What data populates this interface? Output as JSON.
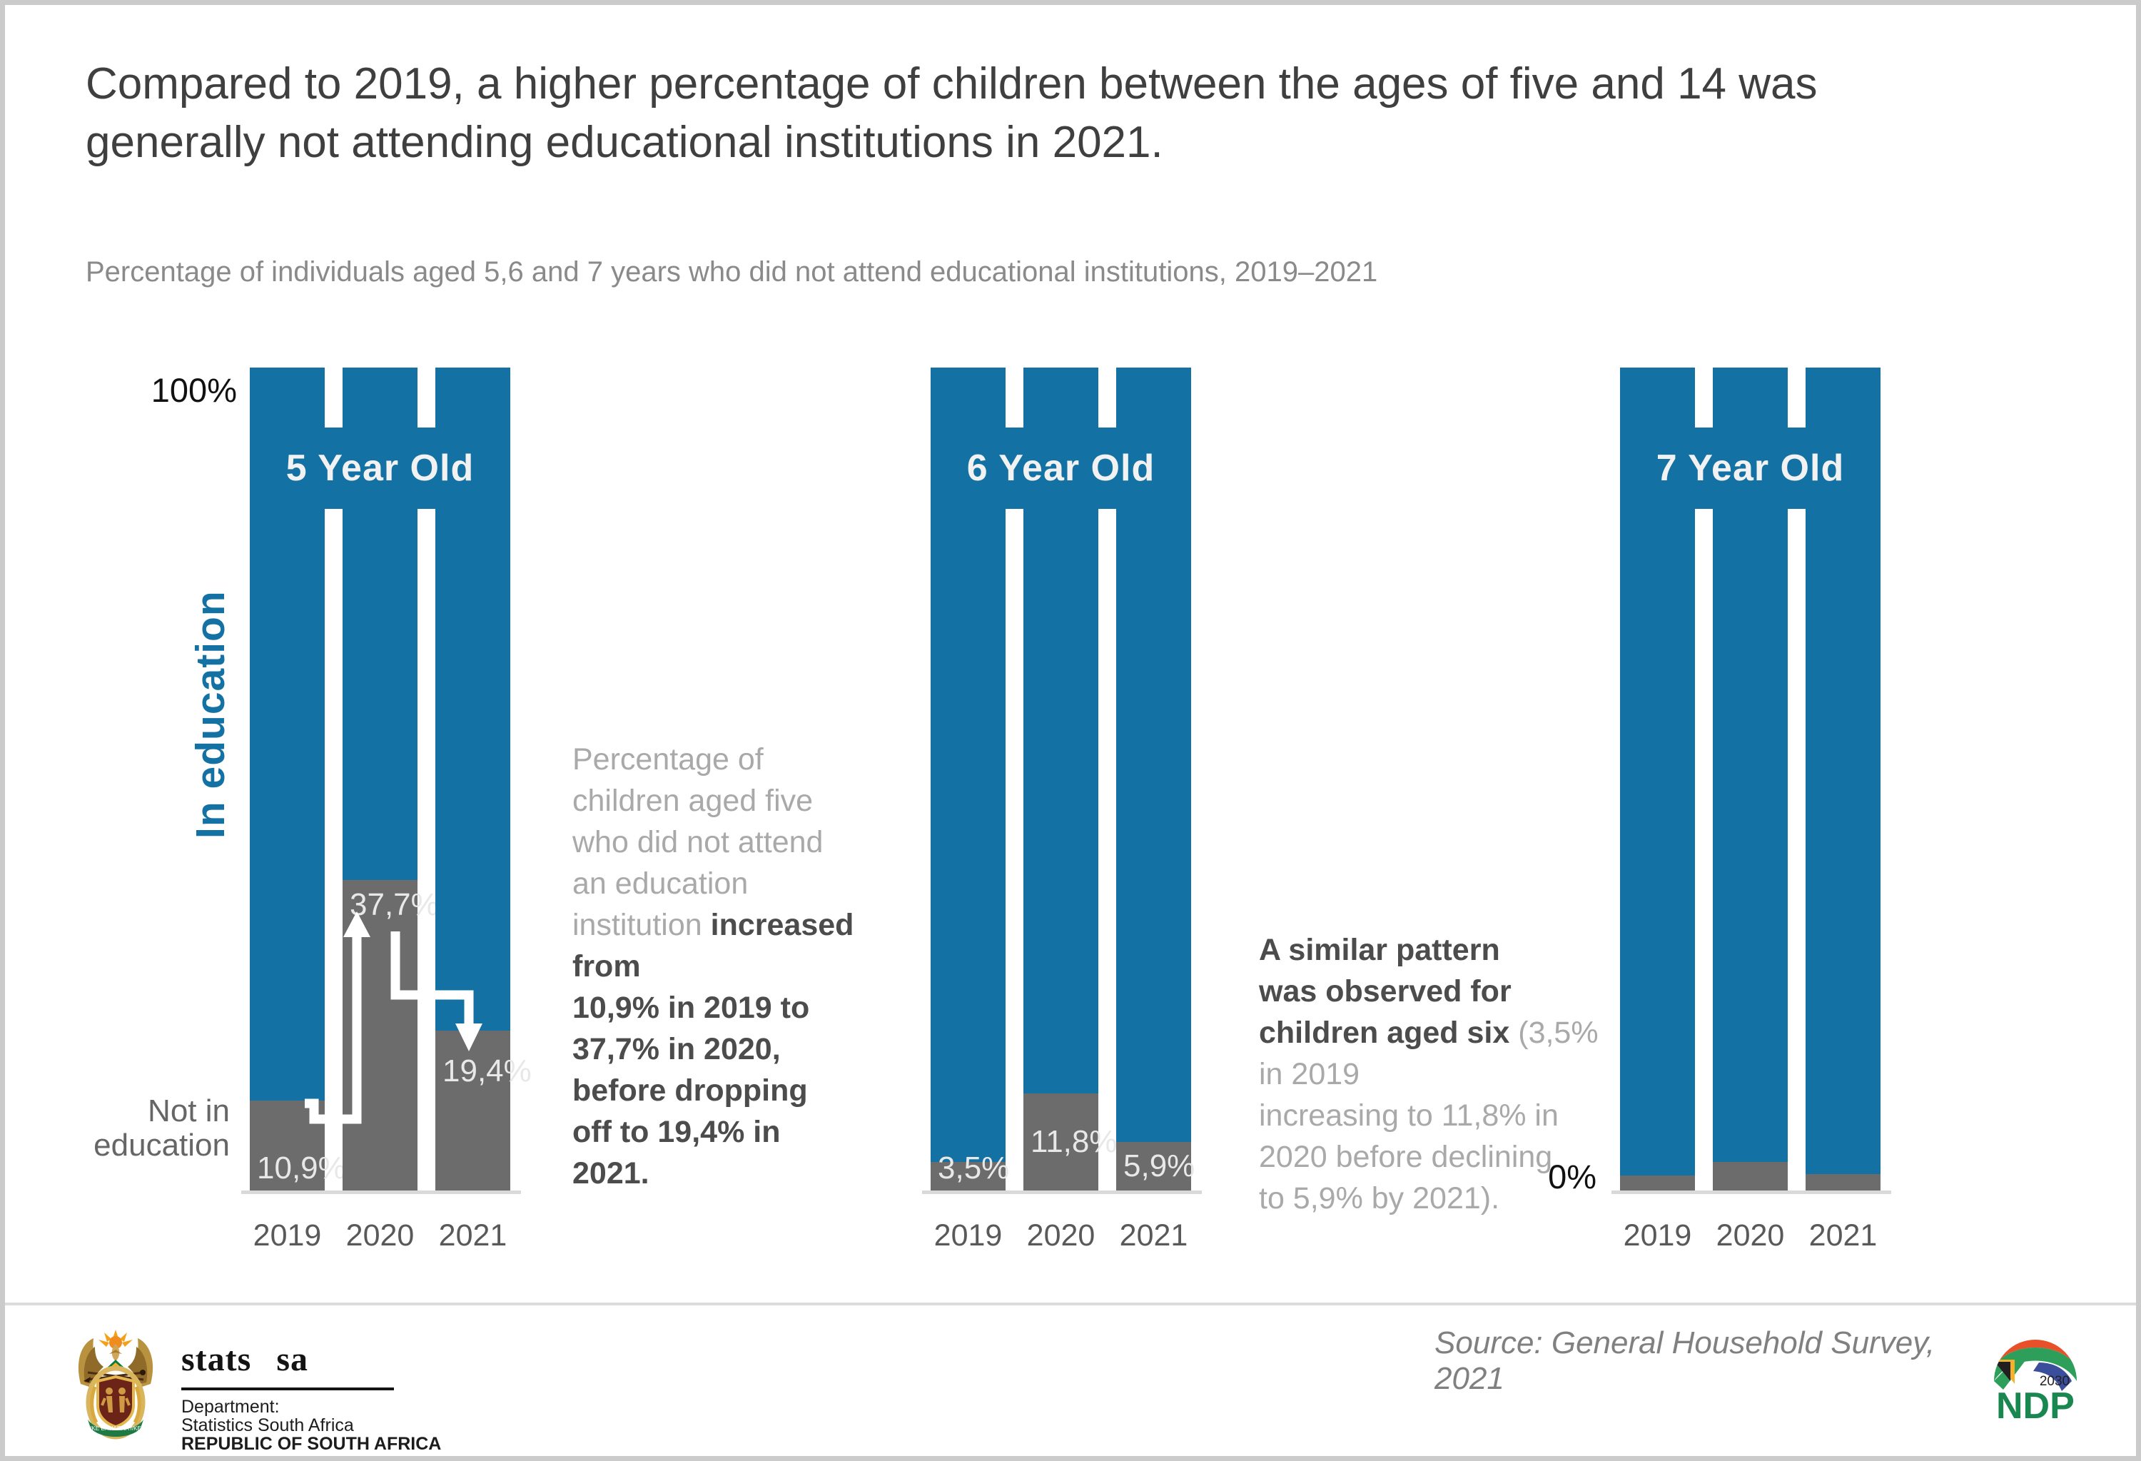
{
  "page": {
    "title": "Compared to 2019, a higher percentage of children between the ages of five and 14 was\ngenerally not attending educational institutions in 2021.",
    "subtitle": "Percentage of individuals aged 5,6 and 7 years who did not attend educational institutions, 2019–2021",
    "source": "Source: General Household Survey, 2021"
  },
  "axis": {
    "top_label": "100%",
    "zero_label": "0%",
    "in_education": "In education",
    "not_in_education": "Not in\neducation"
  },
  "chart_data": {
    "type": "bar",
    "stacked": true,
    "unit": "percent",
    "categories": [
      "2019",
      "2020",
      "2021"
    ],
    "ylim": [
      0,
      100
    ],
    "legend": [
      "In education (blue)",
      "Not in education (grey)"
    ],
    "colors": {
      "in_education": "#1371a3",
      "not_in_education": "#6c6c6c"
    },
    "groups": [
      {
        "title": "5 Year Old",
        "series_name": "Not in education",
        "values": [
          10.9,
          37.7,
          19.4
        ],
        "labels": [
          "10,9%",
          "37,7%",
          "19,4%"
        ],
        "label_positions": [
          "bottom",
          "top",
          "top-offset"
        ]
      },
      {
        "title": "6 Year Old",
        "series_name": "Not in education",
        "values": [
          3.5,
          11.8,
          5.9
        ],
        "labels": [
          "3,5%",
          "11,8%",
          "5,9%"
        ],
        "label_positions": [
          "bottom",
          "center",
          "center"
        ]
      },
      {
        "title": "7 Year Old",
        "series_name": "Not in education",
        "values": [
          1.8,
          3.5,
          2.0
        ],
        "labels": [
          "",
          "",
          ""
        ],
        "label_positions": [
          "none",
          "none",
          "none"
        ]
      }
    ]
  },
  "annotations": {
    "five": {
      "gray": "Percentage of\nchildren aged five\nwho did not attend\nan education\ninstitution",
      "bold": "increased from\n10,9% in 2019 to\n37,7% in 2020,\nbefore dropping\noff to 19,4% in\n2021."
    },
    "six": {
      "bold": "A similar pattern\nwas observed for\nchildren aged six",
      "gray": "(3,5% in 2019\nincreasing to 11,8% in\n2020 before declining\nto 5,9% by 2021)."
    }
  },
  "footer": {
    "statssa": {
      "wordmark": "stats sa",
      "line1": "Department:",
      "line2": "Statistics South Africa",
      "line3": "REPUBLIC OF SOUTH AFRICA"
    },
    "ndp": {
      "year": "2030",
      "name": "NDP"
    }
  }
}
